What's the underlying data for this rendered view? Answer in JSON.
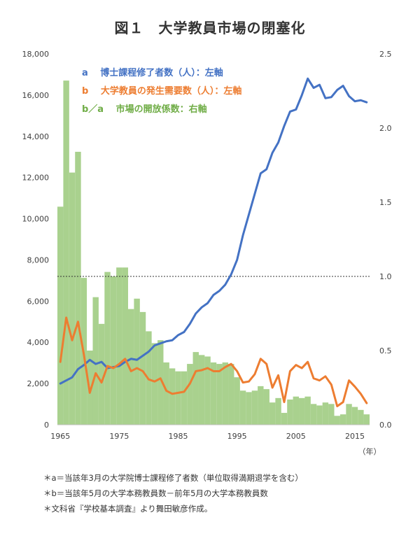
{
  "title": "図１　大学教員市場の閉塞化",
  "chart_data": {
    "type": "bar+line",
    "x_ticks": [
      1965,
      1975,
      1985,
      1995,
      2005,
      2015
    ],
    "x_unit": "（年）",
    "y_left": {
      "ticks": [
        "0",
        "2,000",
        "4,000",
        "6,000",
        "8,000",
        "10,000",
        "12,000",
        "14,000",
        "16,000",
        "18,000"
      ],
      "range": [
        0,
        18000
      ]
    },
    "y_right": {
      "ticks": [
        "0.0",
        "0.5",
        "1.0",
        "1.5",
        "2.0",
        "2.5"
      ],
      "range": [
        0,
        2.5
      ]
    },
    "reference_line": {
      "axis": "right",
      "value": 1.0,
      "style": "dotted"
    },
    "legend": [
      {
        "key": "a",
        "label": "a　 博士課程修了者数（人）：左軸",
        "color": "#4472c4"
      },
      {
        "key": "b",
        "label": "b　 大学教員の発生需要数（人）：左軸",
        "color": "#ed7d31"
      },
      {
        "key": "ratio",
        "label": "b／a 　市場の開放係数：右軸",
        "color": "#70ad47"
      }
    ],
    "years": [
      1965,
      1966,
      1967,
      1968,
      1969,
      1970,
      1971,
      1972,
      1973,
      1974,
      1975,
      1976,
      1977,
      1978,
      1979,
      1980,
      1981,
      1982,
      1983,
      1984,
      1985,
      1986,
      1987,
      1988,
      1989,
      1990,
      1991,
      1992,
      1993,
      1994,
      1995,
      1996,
      1997,
      1998,
      1999,
      2000,
      2001,
      2002,
      2003,
      2004,
      2005,
      2006,
      2007,
      2008,
      2009,
      2010,
      2011,
      2012,
      2013,
      2014,
      2015,
      2016,
      2017
    ],
    "series": [
      {
        "name": "a",
        "axis": "left",
        "type": "line",
        "color": "#4472c4",
        "values": [
          2000,
          2150,
          2300,
          2700,
          2900,
          3150,
          2950,
          3050,
          2750,
          2800,
          2850,
          3050,
          3200,
          3150,
          3350,
          3550,
          3850,
          3950,
          4050,
          4100,
          4350,
          4500,
          4900,
          5400,
          5700,
          5900,
          6300,
          6500,
          6800,
          7300,
          8000,
          9200,
          10200,
          11200,
          12200,
          12400,
          13200,
          13700,
          14500,
          15200,
          15300,
          16000,
          16800,
          16350,
          16500,
          15850,
          15900,
          16250,
          16450,
          15950,
          15700,
          15750,
          15650
        ]
      },
      {
        "name": "b",
        "axis": "left",
        "type": "line",
        "color": "#ed7d31",
        "values": [
          3050,
          5200,
          4100,
          5000,
          3400,
          1550,
          2500,
          2050,
          2850,
          2750,
          2950,
          3200,
          2600,
          2750,
          2600,
          2200,
          2100,
          2250,
          1650,
          1500,
          1550,
          1600,
          2000,
          2600,
          2650,
          2750,
          2600,
          2600,
          2800,
          2950,
          2600,
          2050,
          2100,
          2450,
          3200,
          2950,
          1800,
          2400,
          1100,
          2600,
          2900,
          2750,
          3050,
          2250,
          2150,
          2350,
          1950,
          900,
          1100,
          2150,
          1850,
          1500,
          1050
        ]
      },
      {
        "name": "b/a",
        "axis": "right",
        "type": "bar",
        "color": "#a9d18e",
        "values": [
          1.47,
          2.32,
          1.7,
          1.84,
          0.99,
          0.5,
          0.86,
          0.68,
          1.03,
          1.0,
          1.06,
          1.06,
          0.78,
          0.85,
          0.76,
          0.63,
          0.55,
          0.57,
          0.42,
          0.38,
          0.36,
          0.36,
          0.41,
          0.49,
          0.47,
          0.46,
          0.42,
          0.41,
          0.42,
          0.41,
          0.32,
          0.23,
          0.22,
          0.23,
          0.26,
          0.24,
          0.15,
          0.18,
          0.08,
          0.17,
          0.19,
          0.18,
          0.19,
          0.14,
          0.13,
          0.15,
          0.14,
          0.06,
          0.07,
          0.14,
          0.12,
          0.1,
          0.07
        ]
      }
    ]
  },
  "notes": [
    "＊a＝当該年3月の大学院博士課程修了者数（単位取得満期退学を含む）",
    "＊b＝当該年5月の大学本務教員数－前年5月の大学本務教員数",
    "＊文科省『学校基本調査』より舞田敏彦作成。"
  ]
}
